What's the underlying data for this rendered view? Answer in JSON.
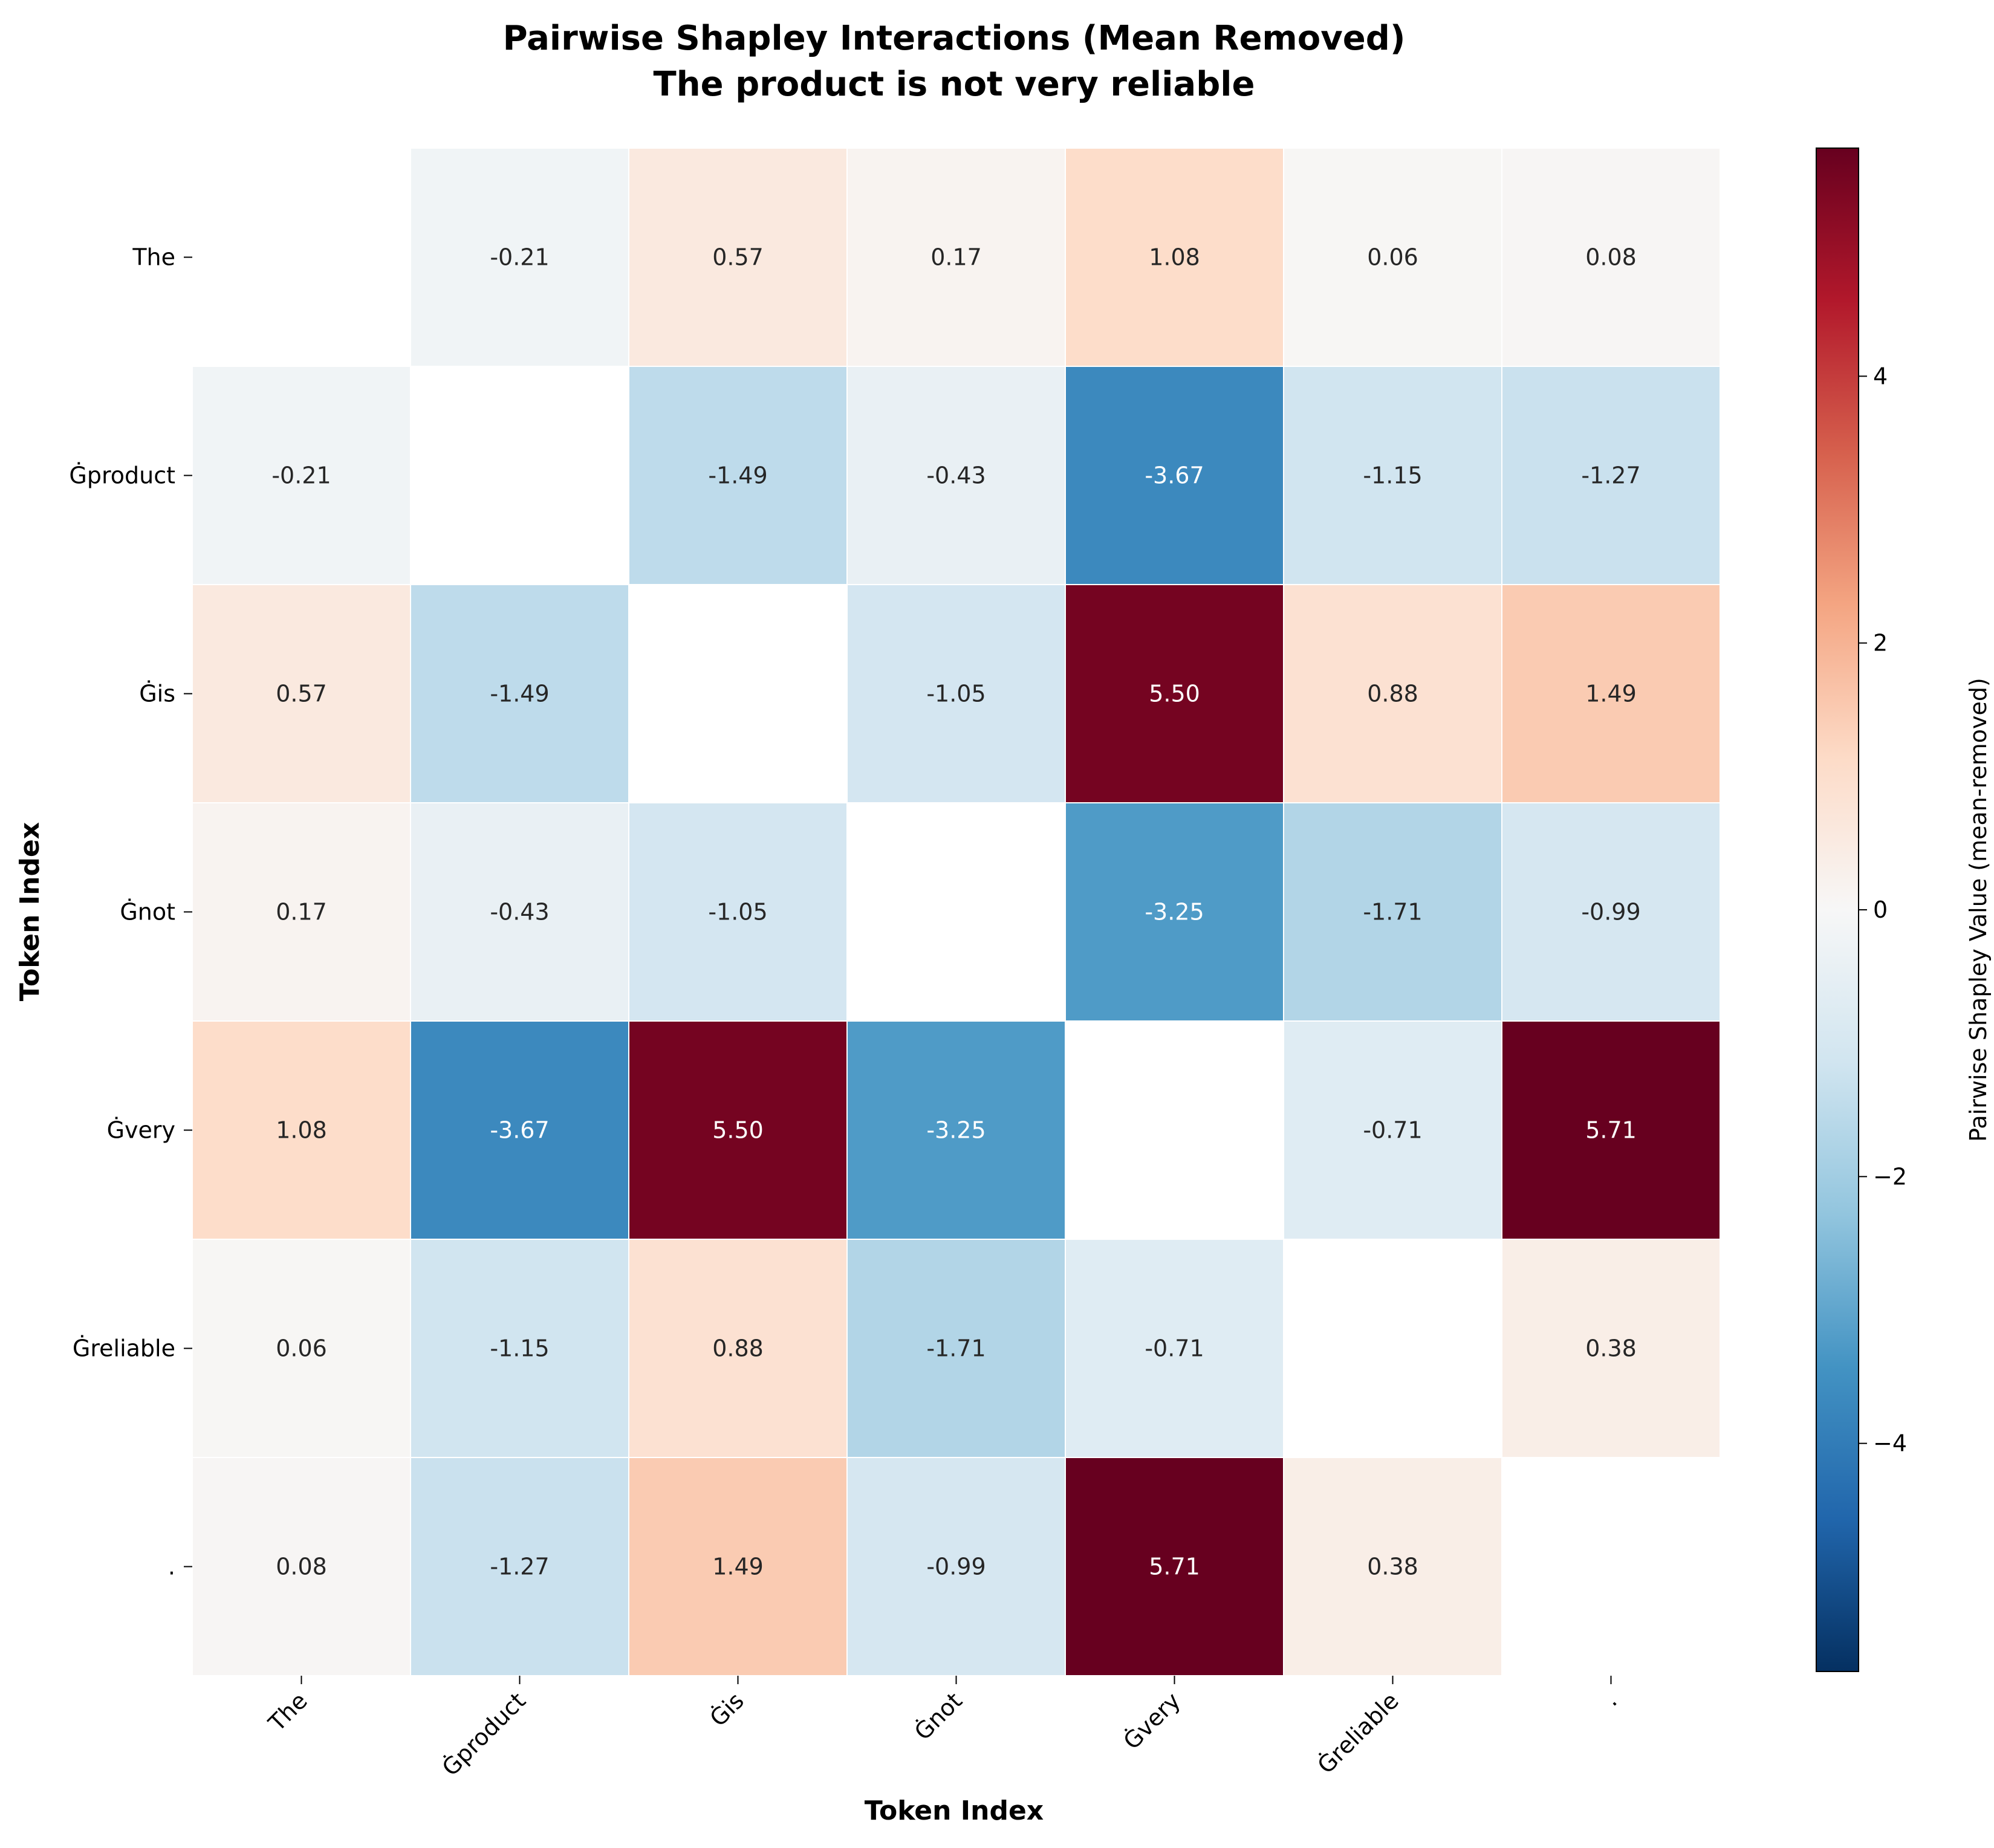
{
  "chart_data": {
    "type": "heatmap",
    "title": "Pairwise Shapley Interactions (Mean Removed)",
    "subtitle": "The product is not very reliable",
    "xlabel": "Token Index",
    "ylabel": "Token Index",
    "x_tick_labels": [
      "The",
      "Ġproduct",
      "Ġis",
      "Ġnot",
      "Ġvery",
      "Ġreliable",
      "."
    ],
    "y_tick_labels": [
      "The",
      "Ġproduct",
      "Ġis",
      "Ġnot",
      "Ġvery",
      "Ġreliable",
      "."
    ],
    "values": [
      [
        null,
        -0.21,
        0.57,
        0.17,
        1.08,
        0.06,
        0.08
      ],
      [
        -0.21,
        null,
        -1.49,
        -0.43,
        -3.67,
        -1.15,
        -1.27
      ],
      [
        0.57,
        -1.49,
        null,
        -1.05,
        5.5,
        0.88,
        1.49
      ],
      [
        0.17,
        -0.43,
        -1.05,
        null,
        -3.25,
        -1.71,
        -0.99
      ],
      [
        1.08,
        -3.67,
        5.5,
        -3.25,
        null,
        -0.71,
        5.71
      ],
      [
        0.06,
        -1.15,
        0.88,
        -1.71,
        -0.71,
        null,
        0.38
      ],
      [
        0.08,
        -1.27,
        1.49,
        -0.99,
        5.71,
        0.38,
        null
      ]
    ],
    "value_labels": [
      [
        "",
        "-0.21",
        "0.57",
        "0.17",
        "1.08",
        "0.06",
        "0.08"
      ],
      [
        "-0.21",
        "",
        "-1.49",
        "-0.43",
        "-3.67",
        "-1.15",
        "-1.27"
      ],
      [
        "0.57",
        "-1.49",
        "",
        "-1.05",
        "5.50",
        "0.88",
        "1.49"
      ],
      [
        "0.17",
        "-0.43",
        "-1.05",
        "",
        "-3.25",
        "-1.71",
        "-0.99"
      ],
      [
        "1.08",
        "-3.67",
        "5.50",
        "-3.25",
        "",
        "-0.71",
        "5.71"
      ],
      [
        "0.06",
        "-1.15",
        "0.88",
        "-1.71",
        "-0.71",
        "",
        "0.38"
      ],
      [
        "0.08",
        "-1.27",
        "1.49",
        "-0.99",
        "5.71",
        "0.38",
        ""
      ]
    ],
    "colormap": "RdBu_r",
    "color_range": [
      -5.71,
      5.71
    ],
    "colorbar": {
      "label": "Pairwise Shapley Value (mean-removed)",
      "ticks": [
        -4,
        -2,
        0,
        2,
        4
      ],
      "tick_labels": [
        "−4",
        "−2",
        "0",
        "2",
        "4"
      ]
    },
    "diagonal_masked": true,
    "grid": false
  }
}
